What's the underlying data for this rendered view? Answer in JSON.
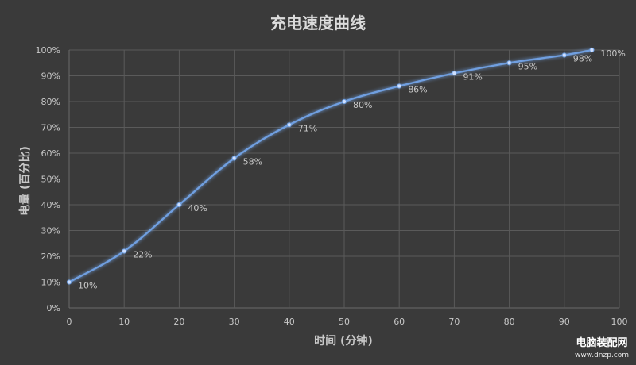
{
  "watermark": {
    "name": "电脑装配网",
    "url": "www.dnzp.com"
  },
  "chart_data": {
    "type": "line",
    "title": "充电速度曲线",
    "xlabel": "时间 (分钟)",
    "ylabel": "电量 (百分比)",
    "xlim": [
      0,
      100
    ],
    "ylim": [
      0,
      100
    ],
    "x_ticks": [
      0,
      10,
      20,
      30,
      40,
      50,
      60,
      70,
      80,
      90,
      100
    ],
    "y_ticks": [
      0,
      10,
      20,
      30,
      40,
      50,
      60,
      70,
      80,
      90,
      100
    ],
    "x_tick_labels": [
      "0",
      "10",
      "20",
      "30",
      "40",
      "50",
      "60",
      "70",
      "80",
      "90",
      "100"
    ],
    "y_tick_labels": [
      "0%",
      "10%",
      "20%",
      "30%",
      "40%",
      "50%",
      "60%",
      "70%",
      "80%",
      "90%",
      "100%"
    ],
    "grid": true,
    "line_color": "#6f9fe0",
    "series": [
      {
        "x": [
          0,
          10,
          20,
          30,
          40,
          50,
          60,
          70,
          80,
          90,
          95
        ],
        "values": [
          10,
          22,
          40,
          58,
          71,
          80,
          86,
          91,
          95,
          98,
          100
        ],
        "labels": [
          "10%",
          "22%",
          "40%",
          "58%",
          "71%",
          "80%",
          "86%",
          "91%",
          "95%",
          "98%",
          "100%"
        ]
      }
    ]
  }
}
